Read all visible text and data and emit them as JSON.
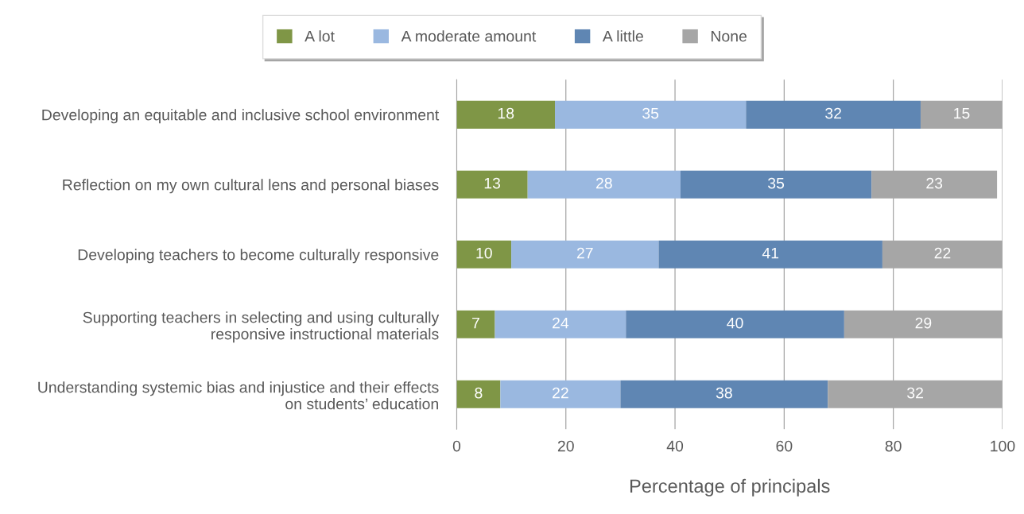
{
  "chart_data": {
    "type": "bar",
    "orientation": "horizontal",
    "stacked": true,
    "xlabel": "Percentage of principals",
    "categories": [
      "Developing an equitable and inclusive school environment",
      "Reflection on my own cultural lens and personal biases",
      "Developing teachers to become culturally responsive",
      "Supporting teachers in selecting and using culturally\nresponsive instructional materials",
      "Understanding systemic bias and injustice and their effects\non students’ education"
    ],
    "series": [
      {
        "name": "A lot",
        "color": "#7f9646",
        "values": [
          18,
          13,
          10,
          7,
          8
        ]
      },
      {
        "name": "A moderate amount",
        "color": "#9ab8e0",
        "values": [
          35,
          28,
          27,
          24,
          22
        ]
      },
      {
        "name": "A little",
        "color": "#5f86b3",
        "values": [
          32,
          35,
          41,
          40,
          38
        ]
      },
      {
        "name": "None",
        "color": "#a6a6a6",
        "values": [
          15,
          23,
          22,
          29,
          32
        ]
      }
    ],
    "xlim": [
      0,
      100
    ],
    "xticks": [
      0,
      20,
      40,
      60,
      80,
      100
    ],
    "grid": "x",
    "legend": "top",
    "data_labels": true
  }
}
